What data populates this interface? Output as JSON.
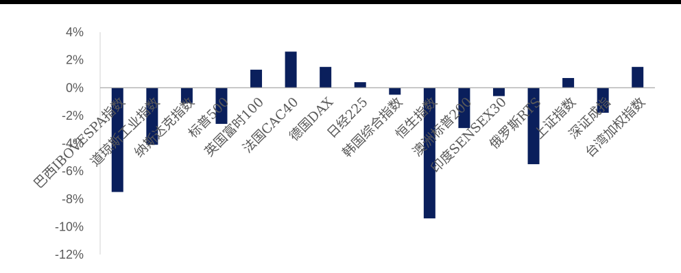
{
  "chart_data": {
    "type": "bar",
    "title": "",
    "xlabel": "",
    "ylabel": "",
    "ylim": [
      -12,
      4
    ],
    "yticks": [
      "4%",
      "2%",
      "0%",
      "-2%",
      "-4%",
      "-6%",
      "-8%",
      "-10%",
      "-12%"
    ],
    "ytick_values": [
      4,
      2,
      0,
      -2,
      -4,
      -6,
      -8,
      -10,
      -12
    ],
    "grid": false,
    "legend": "none",
    "bar_color": "#0a1f5c",
    "categories": [
      "巴西IBOVESPA指数",
      "道琼斯工业指数",
      "纳斯达克指数",
      "标普500",
      "英国富时100",
      "法国CAC40",
      "德国DAX",
      "日经225",
      "韩国综合指数",
      "恒生指数",
      "澳洲标普200",
      "印度SENSEX30",
      "俄罗斯RTS",
      "上证指数",
      "深证成指",
      "台湾加权指数"
    ],
    "values": [
      -7.5,
      -4.1,
      -1.1,
      -2.6,
      1.3,
      2.6,
      1.5,
      0.4,
      -0.5,
      -9.4,
      -2.9,
      -0.6,
      -5.5,
      0.7,
      -1.8,
      1.5
    ]
  }
}
